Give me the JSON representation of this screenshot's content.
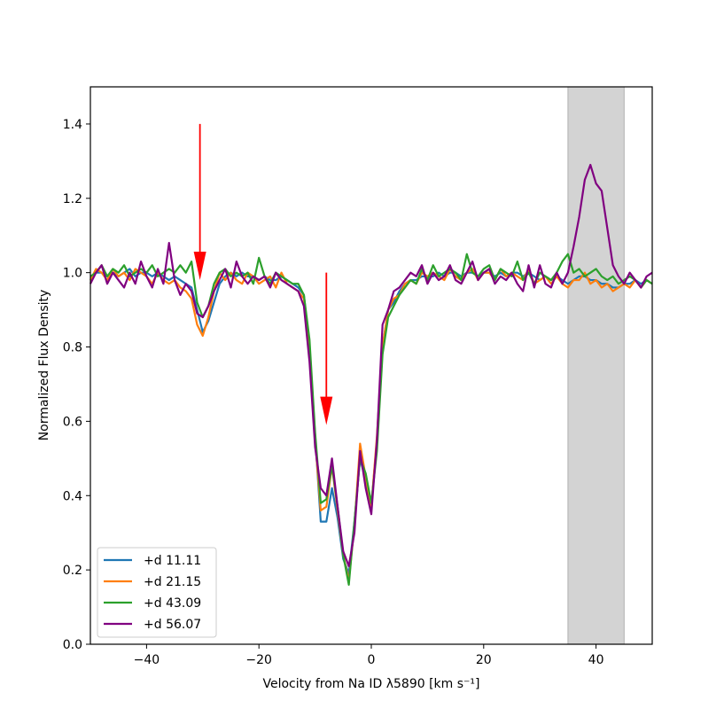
{
  "chart_data": {
    "type": "line",
    "title": "",
    "xlabel": "Velocity from Na ID λ5890 [km s⁻¹]",
    "ylabel": "Normalized Flux Density",
    "xlim": [
      -50,
      50
    ],
    "ylim": [
      0,
      1.5
    ],
    "xticks": [
      -40,
      -20,
      0,
      20,
      40
    ],
    "xtick_labels": [
      "−40",
      "−20",
      "0",
      "20",
      "40"
    ],
    "yticks": [
      0.0,
      0.2,
      0.4,
      0.6,
      0.8,
      1.0,
      1.2,
      1.4
    ],
    "ytick_labels": [
      "0.0",
      "0.2",
      "0.4",
      "0.6",
      "0.8",
      "1.0",
      "1.2",
      "1.4"
    ],
    "grid": false,
    "legend_position": "lower-left",
    "shaded_region": {
      "x0": 35,
      "x1": 45,
      "color": "#d3d3d3"
    },
    "annotations": [
      {
        "type": "arrow",
        "x": -30.5,
        "y_start": 1.4,
        "y_end": 0.98,
        "color": "#ff0000"
      },
      {
        "type": "arrow",
        "x": -8.0,
        "y_start": 1.0,
        "y_end": 0.59,
        "color": "#ff0000"
      }
    ],
    "series": [
      {
        "name": "+d 11.11",
        "color": "#1f77b4",
        "x": [
          -50,
          -49,
          -48,
          -47,
          -46,
          -45,
          -44,
          -43,
          -42,
          -41,
          -40,
          -39,
          -38,
          -37,
          -36,
          -35,
          -34,
          -33,
          -32,
          -31,
          -30,
          -29,
          -28,
          -27,
          -26,
          -25,
          -24,
          -23,
          -22,
          -21,
          -20,
          -19,
          -18,
          -17,
          -16,
          -15,
          -14,
          -13,
          -12,
          -11,
          -10,
          -9,
          -8,
          -7,
          -6,
          -5,
          -4,
          -3,
          -2,
          -1,
          0,
          1,
          2,
          3,
          4,
          5,
          6,
          7,
          8,
          9,
          10,
          11,
          12,
          13,
          14,
          15,
          16,
          17,
          18,
          19,
          20,
          21,
          22,
          23,
          24,
          25,
          26,
          27,
          28,
          29,
          30,
          31,
          32,
          33,
          34,
          35,
          36,
          37,
          38,
          39,
          40,
          41,
          42,
          43,
          44,
          45,
          46,
          47,
          48,
          49,
          50
        ],
        "y": [
          0.98,
          1.0,
          1.0,
          0.99,
          1.0,
          0.99,
          1.0,
          1.01,
          0.99,
          1.0,
          1.0,
          0.99,
          1.0,
          0.99,
          0.98,
          0.99,
          0.98,
          0.97,
          0.96,
          0.9,
          0.84,
          0.87,
          0.92,
          0.97,
          0.99,
          1.0,
          0.99,
          1.0,
          0.99,
          0.99,
          0.98,
          0.99,
          0.98,
          0.98,
          0.99,
          0.98,
          0.97,
          0.96,
          0.94,
          0.8,
          0.56,
          0.33,
          0.33,
          0.42,
          0.34,
          0.23,
          0.19,
          0.33,
          0.5,
          0.44,
          0.37,
          0.55,
          0.8,
          0.9,
          0.92,
          0.95,
          0.97,
          0.98,
          0.98,
          0.99,
          0.99,
          0.99,
          1.0,
          0.99,
          1.0,
          1.0,
          0.99,
          1.0,
          1.0,
          0.99,
          1.0,
          1.0,
          0.99,
          1.0,
          0.99,
          1.0,
          1.0,
          0.99,
          1.0,
          0.99,
          0.98,
          0.99,
          0.98,
          0.99,
          0.98,
          0.97,
          0.98,
          0.99,
          0.99,
          0.98,
          0.98,
          0.97,
          0.97,
          0.96,
          0.96,
          0.97,
          0.97,
          0.98,
          0.97,
          0.98,
          0.97
        ]
      },
      {
        "name": "+d 21.15",
        "color": "#ff7f0e",
        "x": [
          -50,
          -49,
          -48,
          -47,
          -46,
          -45,
          -44,
          -43,
          -42,
          -41,
          -40,
          -39,
          -38,
          -37,
          -36,
          -35,
          -34,
          -33,
          -32,
          -31,
          -30,
          -29,
          -28,
          -27,
          -26,
          -25,
          -24,
          -23,
          -22,
          -21,
          -20,
          -19,
          -18,
          -17,
          -16,
          -15,
          -14,
          -13,
          -12,
          -11,
          -10,
          -9,
          -8,
          -7,
          -6,
          -5,
          -4,
          -3,
          -2,
          -1,
          0,
          1,
          2,
          3,
          4,
          5,
          6,
          7,
          8,
          9,
          10,
          11,
          12,
          13,
          14,
          15,
          16,
          17,
          18,
          19,
          20,
          21,
          22,
          23,
          24,
          25,
          26,
          27,
          28,
          29,
          30,
          31,
          32,
          33,
          34,
          35,
          36,
          37,
          38,
          39,
          40,
          41,
          42,
          43,
          44,
          45,
          46,
          47,
          48,
          49,
          50
        ],
        "y": [
          0.98,
          1.01,
          1.0,
          0.98,
          1.01,
          0.99,
          1.0,
          0.98,
          1.01,
          1.0,
          0.99,
          0.97,
          1.0,
          0.98,
          0.97,
          0.98,
          0.96,
          0.95,
          0.93,
          0.86,
          0.83,
          0.88,
          0.95,
          1.0,
          0.98,
          1.0,
          0.98,
          0.97,
          1.0,
          0.99,
          0.97,
          0.98,
          0.99,
          0.96,
          1.0,
          0.97,
          0.96,
          0.95,
          0.93,
          0.78,
          0.55,
          0.36,
          0.37,
          0.48,
          0.36,
          0.24,
          0.17,
          0.32,
          0.54,
          0.45,
          0.37,
          0.56,
          0.8,
          0.9,
          0.93,
          0.94,
          0.97,
          0.98,
          0.97,
          1.0,
          0.99,
          1.0,
          0.99,
          0.98,
          1.01,
          0.99,
          0.98,
          1.0,
          1.01,
          0.98,
          1.0,
          1.0,
          0.98,
          1.01,
          0.99,
          1.0,
          0.99,
          0.98,
          1.01,
          0.97,
          0.98,
          0.99,
          0.97,
          0.99,
          0.97,
          0.96,
          0.98,
          0.98,
          1.0,
          0.97,
          0.98,
          0.96,
          0.97,
          0.95,
          0.96,
          0.97,
          0.96,
          0.98,
          0.96,
          0.98,
          0.97
        ]
      },
      {
        "name": "+d 43.09",
        "color": "#2ca02c",
        "x": [
          -50,
          -49,
          -48,
          -47,
          -46,
          -45,
          -44,
          -43,
          -42,
          -41,
          -40,
          -39,
          -38,
          -37,
          -36,
          -35,
          -34,
          -33,
          -32,
          -31,
          -30,
          -29,
          -28,
          -27,
          -26,
          -25,
          -24,
          -23,
          -22,
          -21,
          -20,
          -19,
          -18,
          -17,
          -16,
          -15,
          -14,
          -13,
          -12,
          -11,
          -10,
          -9,
          -8,
          -7,
          -6,
          -5,
          -4,
          -3,
          -2,
          -1,
          0,
          1,
          2,
          3,
          4,
          5,
          6,
          7,
          8,
          9,
          10,
          11,
          12,
          13,
          14,
          15,
          16,
          17,
          18,
          19,
          20,
          21,
          22,
          23,
          24,
          25,
          26,
          27,
          28,
          29,
          30,
          31,
          32,
          33,
          34,
          35,
          36,
          37,
          38,
          39,
          40,
          41,
          42,
          43,
          44,
          45,
          46,
          47,
          48,
          49,
          50
        ],
        "y": [
          0.99,
          1.0,
          1.02,
          0.99,
          1.01,
          1.0,
          1.02,
          0.99,
          1.0,
          1.01,
          1.0,
          1.02,
          0.99,
          1.0,
          1.01,
          1.0,
          1.02,
          1.0,
          1.03,
          0.92,
          0.88,
          0.91,
          0.97,
          1.0,
          1.01,
          0.99,
          1.0,
          0.99,
          1.0,
          0.97,
          1.04,
          0.99,
          0.97,
          1.0,
          0.99,
          0.98,
          0.97,
          0.97,
          0.94,
          0.82,
          0.57,
          0.38,
          0.39,
          0.48,
          0.37,
          0.24,
          0.16,
          0.33,
          0.5,
          0.46,
          0.38,
          0.52,
          0.78,
          0.88,
          0.91,
          0.94,
          0.96,
          0.98,
          0.97,
          1.01,
          0.98,
          1.02,
          0.99,
          1.0,
          1.01,
          1.0,
          0.98,
          1.05,
          1.0,
          0.99,
          1.01,
          1.02,
          0.98,
          1.01,
          1.0,
          0.99,
          1.03,
          0.98,
          1.0,
          0.97,
          1.0,
          0.99,
          0.98,
          1.0,
          1.03,
          1.05,
          1.0,
          1.01,
          0.99,
          1.0,
          1.01,
          0.99,
          0.98,
          0.99,
          0.97,
          0.98,
          0.99,
          0.98,
          0.96,
          0.98,
          0.97
        ]
      },
      {
        "name": "+d 56.07",
        "color": "#800080",
        "x": [
          -50,
          -49,
          -48,
          -47,
          -46,
          -45,
          -44,
          -43,
          -42,
          -41,
          -40,
          -39,
          -38,
          -37,
          -36,
          -35,
          -34,
          -33,
          -32,
          -31,
          -30,
          -29,
          -28,
          -27,
          -26,
          -25,
          -24,
          -23,
          -22,
          -21,
          -20,
          -19,
          -18,
          -17,
          -16,
          -15,
          -14,
          -13,
          -12,
          -11,
          -10,
          -9,
          -8,
          -7,
          -6,
          -5,
          -4,
          -3,
          -2,
          -1,
          0,
          1,
          2,
          3,
          4,
          5,
          6,
          7,
          8,
          9,
          10,
          11,
          12,
          13,
          14,
          15,
          16,
          17,
          18,
          19,
          20,
          21,
          22,
          23,
          24,
          25,
          26,
          27,
          28,
          29,
          30,
          31,
          32,
          33,
          34,
          35,
          36,
          37,
          38,
          39,
          40,
          41,
          42,
          43,
          44,
          45,
          46,
          47,
          48,
          49,
          50
        ],
        "y": [
          0.97,
          1.0,
          1.02,
          0.97,
          1.0,
          0.98,
          0.96,
          1.0,
          0.97,
          1.03,
          0.99,
          0.96,
          1.01,
          0.97,
          1.08,
          0.98,
          0.94,
          0.97,
          0.95,
          0.89,
          0.88,
          0.91,
          0.95,
          0.98,
          1.01,
          0.96,
          1.03,
          0.99,
          0.97,
          0.99,
          0.98,
          0.99,
          0.96,
          1.0,
          0.98,
          0.97,
          0.96,
          0.95,
          0.91,
          0.76,
          0.53,
          0.42,
          0.4,
          0.5,
          0.37,
          0.25,
          0.21,
          0.3,
          0.52,
          0.42,
          0.35,
          0.55,
          0.86,
          0.9,
          0.95,
          0.96,
          0.98,
          1.0,
          0.99,
          1.02,
          0.97,
          1.0,
          0.98,
          0.99,
          1.02,
          0.98,
          0.97,
          1.0,
          1.03,
          0.98,
          1.0,
          1.01,
          0.97,
          0.99,
          0.98,
          1.0,
          0.97,
          0.95,
          1.02,
          0.96,
          1.02,
          0.97,
          0.96,
          1.0,
          0.97,
          1.0,
          1.07,
          1.15,
          1.25,
          1.29,
          1.24,
          1.22,
          1.12,
          1.02,
          0.99,
          0.97,
          1.0,
          0.98,
          0.96,
          0.99,
          1.0
        ]
      }
    ]
  }
}
